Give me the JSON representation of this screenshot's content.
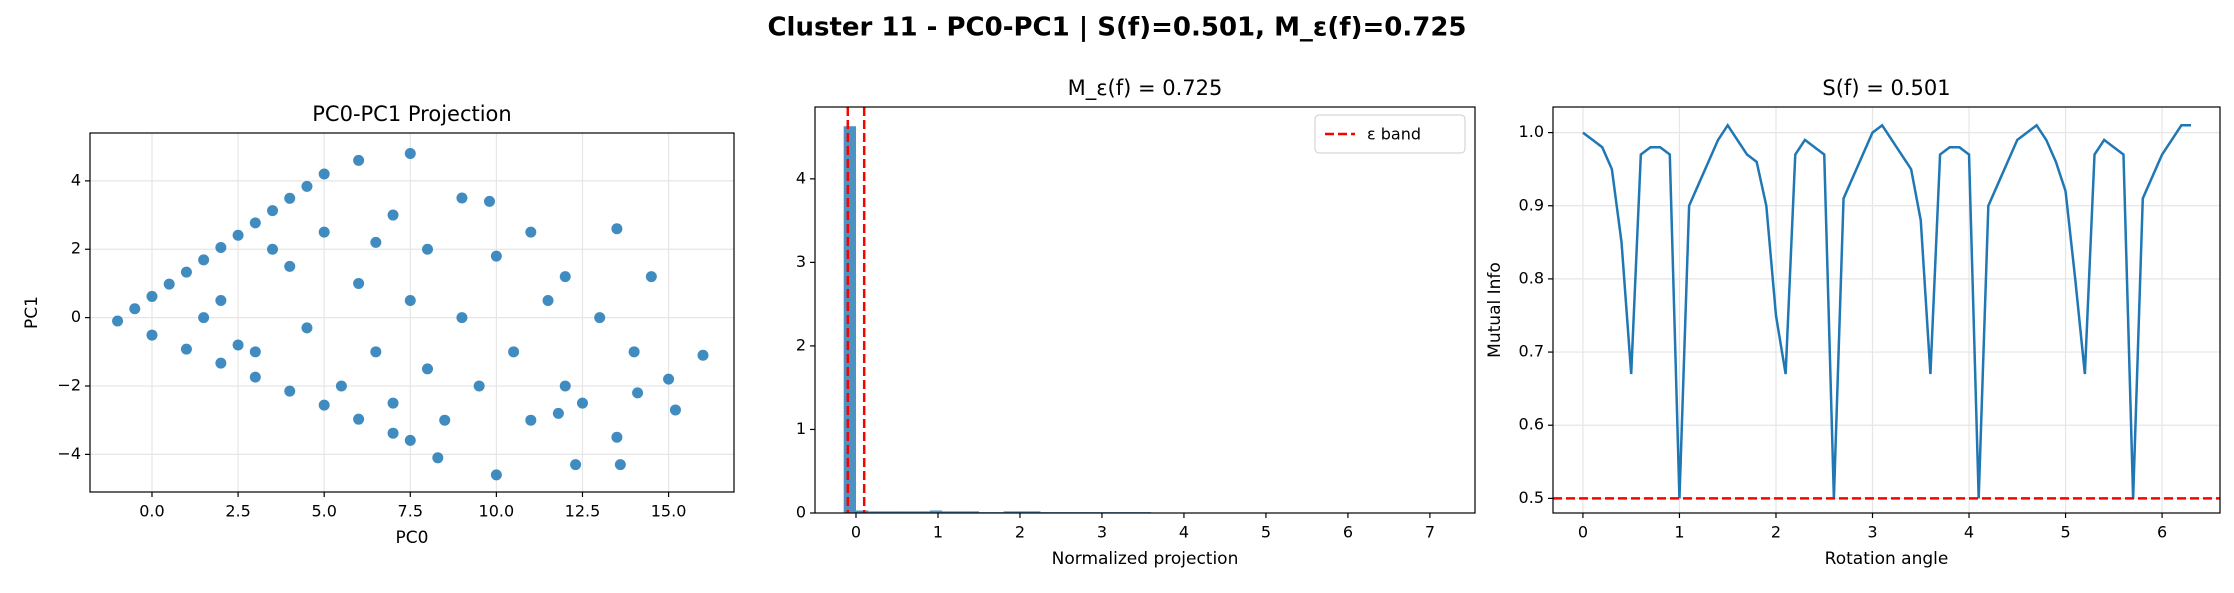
{
  "suptitle": "Cluster 11 - PC0-PC1 | S(f)=0.501, M_ε(f)=0.725",
  "chart_data": [
    {
      "type": "scatter",
      "title": "PC0-PC1 Projection",
      "x_label": "PC0",
      "y_label": "PC1",
      "color": "#1f77b4",
      "grid": true,
      "x": [
        -1,
        -0.5,
        0,
        0.5,
        1,
        1.5,
        2,
        2.5,
        3,
        3.5,
        4,
        4.5,
        5,
        0,
        1,
        2,
        3,
        4,
        5,
        6,
        7,
        7.5,
        2,
        3,
        4,
        4.5,
        5,
        5.5,
        6,
        6,
        6.5,
        7,
        7,
        7.5,
        7.5,
        8,
        8,
        8.5,
        9,
        9,
        9.5,
        10,
        10,
        10.5,
        11,
        11,
        11.5,
        12,
        12,
        12.5,
        13,
        13.5,
        13.5,
        14,
        14.5,
        15,
        15.2,
        16,
        13.6,
        14.1,
        3.5,
        1.5,
        2.5,
        6.5,
        9.8,
        12.3,
        8.3,
        11.8
      ],
      "values": [
        -0.1,
        0.26,
        0.62,
        0.98,
        1.33,
        1.69,
        2.05,
        2.41,
        2.77,
        3.13,
        3.49,
        3.84,
        4.2,
        -0.51,
        -0.92,
        -1.33,
        -1.74,
        -2.15,
        -2.56,
        -2.97,
        -3.38,
        -3.59,
        0.5,
        -1,
        1.5,
        -0.3,
        2.5,
        -2,
        4.6,
        1,
        -1,
        3,
        -2.5,
        4.8,
        0.5,
        2,
        -1.5,
        -3,
        3.5,
        0,
        -2,
        1.8,
        -4.6,
        -1,
        2.5,
        -3,
        0.5,
        -2,
        1.2,
        -2.5,
        0,
        2.6,
        -3.5,
        -1,
        1.2,
        -1.8,
        -2.7,
        -1.1,
        -4.3,
        -2.2,
        2,
        0,
        -0.8,
        2.2,
        3.4,
        -4.3,
        -4.1,
        -2.8
      ],
      "xlim": [
        -1.8,
        16.9
      ],
      "ylim": [
        -5.1,
        5.4
      ],
      "xticks": [
        {
          "value": 0,
          "label": "0.0"
        },
        {
          "value": 2.5,
          "label": "2.5"
        },
        {
          "value": 5,
          "label": "5.0"
        },
        {
          "value": 7.5,
          "label": "7.5"
        },
        {
          "value": 10,
          "label": "10.0"
        },
        {
          "value": 12.5,
          "label": "12.5"
        },
        {
          "value": 15,
          "label": "15.0"
        }
      ],
      "yticks": [
        {
          "value": -4,
          "label": "−4"
        },
        {
          "value": -2,
          "label": "−2"
        },
        0,
        2,
        4
      ]
    },
    {
      "type": "histogram",
      "title": "M_ε(f) = 0.725",
      "x_label": "Normalized projection",
      "color": "#1f77b4",
      "grid": false,
      "bins": [
        -0.15,
        0,
        0.15,
        0.3,
        0.45,
        0.6,
        0.75,
        0.9,
        1.05,
        1.2,
        1.35,
        1.5,
        1.65,
        1.8,
        1.95,
        2.1,
        2.25,
        2.4,
        2.55,
        2.7,
        2.85,
        3,
        3.15,
        3.3,
        3.45,
        3.6,
        3.75,
        3.9,
        4.05,
        4.2,
        4.35,
        4.5,
        4.65,
        4.8,
        4.95,
        5.1,
        5.25,
        5.4,
        5.55,
        5.7,
        5.85,
        6,
        6.15,
        6.3,
        6.45,
        6.6,
        6.75,
        6.9,
        7.05,
        7.2,
        7.35
      ],
      "values": [
        4.63,
        0.03,
        0.02,
        0.02,
        0.02,
        0.02,
        0.02,
        0.03,
        0.02,
        0.02,
        0.02,
        0.01,
        0.01,
        0.02,
        0.02,
        0.02,
        0.01,
        0.01,
        0.01,
        0.01,
        0.01,
        0.01,
        0.01,
        0.01,
        0.01,
        0,
        0,
        0,
        0,
        0,
        0,
        0,
        0,
        0,
        0,
        0,
        0,
        0,
        0,
        0,
        0,
        0,
        0,
        0,
        0,
        0,
        0,
        0,
        0,
        0
      ],
      "ref_lines": {
        "name": "ε band",
        "color": "#ff0000",
        "values": [
          -0.1,
          0.1
        ]
      },
      "legend": "upper right",
      "xlim": [
        -0.5,
        7.55
      ],
      "ylim": [
        0,
        4.86
      ],
      "xticks": [
        0,
        1,
        2,
        3,
        4,
        5,
        6,
        7
      ],
      "yticks": [
        0,
        1,
        2,
        3,
        4
      ]
    },
    {
      "type": "line",
      "title": "S(f) = 0.501",
      "x_label": "Rotation angle",
      "y_label": "Mutual Info",
      "color": "#1f77b4",
      "grid": true,
      "x": [
        0,
        0.1,
        0.2,
        0.3,
        0.4,
        0.5,
        0.6,
        0.7,
        0.8,
        0.9,
        1,
        1.1,
        1.2,
        1.3,
        1.4,
        1.5,
        1.6,
        1.7,
        1.8,
        1.9,
        2,
        2.1,
        2.2,
        2.3,
        2.4,
        2.5,
        2.6,
        2.7,
        2.8,
        2.9,
        3,
        3.1,
        3.2,
        3.3,
        3.4,
        3.5,
        3.6,
        3.7,
        3.8,
        3.9,
        4,
        4.1,
        4.2,
        4.3,
        4.4,
        4.5,
        4.6,
        4.7,
        4.8,
        4.9,
        5,
        5.1,
        5.2,
        5.3,
        5.4,
        5.5,
        5.6,
        5.7,
        5.8,
        5.9,
        6,
        6.1,
        6.2,
        6.3
      ],
      "values": [
        1.0,
        0.99,
        0.98,
        0.95,
        0.85,
        0.67,
        0.97,
        0.98,
        0.98,
        0.97,
        0.5,
        0.9,
        0.93,
        0.96,
        0.99,
        1.01,
        0.99,
        0.97,
        0.96,
        0.9,
        0.75,
        0.67,
        0.97,
        0.99,
        0.98,
        0.97,
        0.5,
        0.91,
        0.94,
        0.97,
        1.0,
        1.01,
        0.99,
        0.97,
        0.95,
        0.88,
        0.67,
        0.97,
        0.98,
        0.98,
        0.97,
        0.5,
        0.9,
        0.93,
        0.96,
        0.99,
        1.0,
        1.01,
        0.99,
        0.96,
        0.92,
        0.8,
        0.67,
        0.97,
        0.99,
        0.98,
        0.97,
        0.5,
        0.91,
        0.94,
        0.97,
        0.99,
        1.01,
        1.01
      ],
      "hline": {
        "value": 0.5,
        "color": "#ff0000"
      },
      "xlim": [
        -0.31,
        6.6
      ],
      "ylim": [
        0.48,
        1.035
      ],
      "xticks": [
        0,
        1,
        2,
        3,
        4,
        5,
        6
      ],
      "yticks": [
        0.5,
        0.6,
        0.7,
        0.8,
        0.9,
        {
          "value": 1.0,
          "label": "1.0"
        }
      ]
    }
  ]
}
